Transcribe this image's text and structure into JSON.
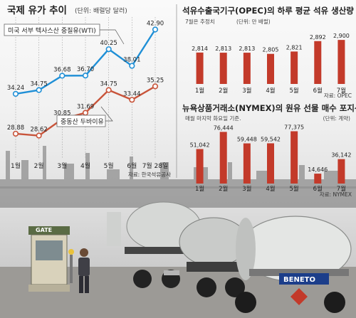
{
  "left_panel": {
    "title": "국제 유가 추이",
    "unit": "(단위: 배럴당 달러)",
    "source": "자료: 한국석유공사"
  },
  "right_top": {
    "title": "석유수출국기구(OPEC)의 하루 평균 석유 생산량",
    "note": "7월은 추정치",
    "unit": "(단위: 만 배럴)",
    "source": "자료: OPEC"
  },
  "right_bottom": {
    "title": "뉴욕상품거래소(NYMEX)의 원유 선물 매수 포지션",
    "note": "매월 마지막 화요일 기준.",
    "unit": "(단위: 계약)",
    "source": "자료: NYMEX"
  },
  "photo": {
    "gate_sign": "GATE",
    "truck_brand": "BENETO"
  },
  "colors": {
    "wti": "#1f8fd6",
    "dubai": "#c8543a",
    "bar": "#c33a2a",
    "title": "#222222"
  },
  "chart_data": [
    {
      "type": "line",
      "categories": [
        "1월",
        "2월",
        "3월",
        "4월",
        "5월",
        "6월",
        "7월 28일"
      ],
      "series": [
        {
          "name": "미국 서부 텍사스산 중질유(WTI)",
          "values": [
            34.24,
            34.75,
            36.68,
            36.7,
            40.25,
            38.01,
            42.9
          ]
        },
        {
          "name": "중동산 두바이유",
          "values": [
            28.88,
            28.62,
            30.85,
            31.69,
            34.75,
            33.44,
            35.25
          ]
        }
      ],
      "value_labels": [
        [
          "34.24",
          "34.75",
          "36.68",
          "36.70",
          "40.25",
          "38.01",
          "42.90"
        ],
        [
          "28.88",
          "28.62",
          "30.85",
          "31.69",
          "34.75",
          "33.44",
          "35.25"
        ]
      ],
      "ylim": [
        26,
        44
      ]
    },
    {
      "type": "bar",
      "categories": [
        "1월",
        "2월",
        "3월",
        "4월",
        "5월",
        "6월",
        "7월"
      ],
      "values": [
        2814,
        2813,
        2813,
        2805,
        2821,
        2892,
        2900
      ],
      "value_labels": [
        "2,814",
        "2,813",
        "2,813",
        "2,805",
        "2,821",
        "2,892",
        "2,900"
      ],
      "ylim": [
        2600,
        2920
      ]
    },
    {
      "type": "bar",
      "categories": [
        "1월",
        "2월",
        "3월",
        "4월",
        "5월",
        "6월",
        "7월"
      ],
      "values": [
        51042,
        76444,
        59448,
        59542,
        77375,
        14646,
        36142
      ],
      "value_labels": [
        "51,042",
        "76,444",
        "59,448",
        "59,542",
        "77,375",
        "14,646",
        "36,142"
      ],
      "ylim": [
        0,
        80000
      ]
    }
  ]
}
